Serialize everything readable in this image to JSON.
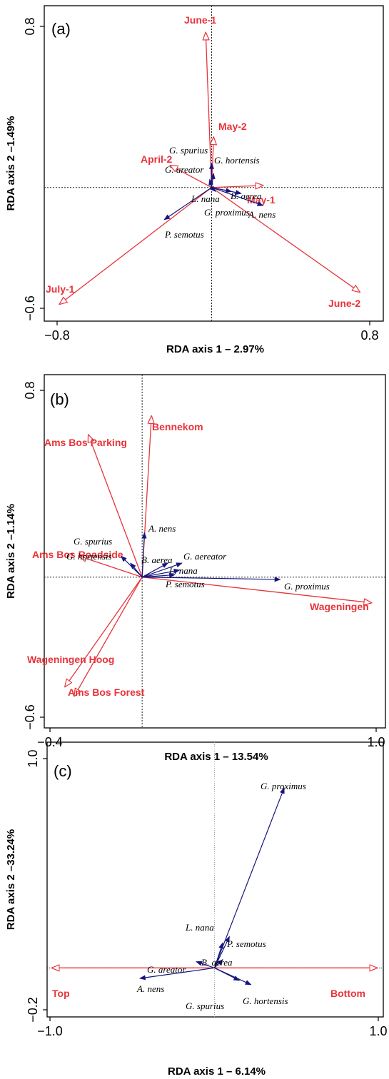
{
  "colors": {
    "environment": "#e8333a",
    "species": "#16167e",
    "frame": "#000000",
    "zero_line": "#000000"
  },
  "chart_data": [
    {
      "type": "scatter",
      "subtype": "rda-biplot",
      "panel_label": "(a)",
      "xlabel": "RDA axis 1 – 2.97%",
      "ylabel": "RDA axis 2 –1.49%",
      "xlim": [
        -0.8,
        0.8
      ],
      "ylim": [
        -0.6,
        0.8
      ],
      "x_ticks": [
        "−0.8",
        "0.8"
      ],
      "y_ticks": [
        "0.8",
        "−0.6"
      ],
      "grid": false,
      "zero_lines": true,
      "environment_vectors": [
        {
          "label": "June-1",
          "x": -0.03,
          "y": 0.77
        },
        {
          "label": "May-2",
          "x": 0.01,
          "y": 0.25
        },
        {
          "label": "April-2",
          "x": -0.21,
          "y": 0.11
        },
        {
          "label": "May-1",
          "x": 0.26,
          "y": 0.01
        },
        {
          "label": "June-2",
          "x": 0.75,
          "y": -0.52
        },
        {
          "label": "July-1",
          "x": -0.77,
          "y": -0.58
        }
      ],
      "species_vectors": [
        {
          "label": "G. spurius",
          "x": 0.0,
          "y": 0.12
        },
        {
          "label": "G. hortensis",
          "x": 0.01,
          "y": 0.07
        },
        {
          "label": "G. areator",
          "x": -0.01,
          "y": 0.04
        },
        {
          "label": "B. aerea",
          "x": 0.15,
          "y": -0.03
        },
        {
          "label": "L. nana",
          "x": 0.02,
          "y": -0.02
        },
        {
          "label": "G. proximus",
          "x": 0.1,
          "y": -0.02
        },
        {
          "label": "A. nens",
          "x": 0.26,
          "y": -0.09
        },
        {
          "label": "P. semotus",
          "x": -0.24,
          "y": -0.16
        }
      ]
    },
    {
      "type": "scatter",
      "subtype": "rda-biplot",
      "panel_label": "(b)",
      "xlabel": "RDA axis 1 – 13.54%",
      "ylabel": "RDA axis 2 –1.14%",
      "xlim": [
        -0.4,
        1.0
      ],
      "ylim": [
        -0.6,
        0.8
      ],
      "x_ticks": [
        "−0.4",
        "1.0"
      ],
      "y_ticks": [
        "0.8",
        "−0.6"
      ],
      "grid": false,
      "zero_lines": true,
      "environment_vectors": [
        {
          "label": "Bennekom",
          "x": 0.04,
          "y": 0.69
        },
        {
          "label": "Ams Bos Parking",
          "x": -0.23,
          "y": 0.61
        },
        {
          "label": "Ams Bos Roadside",
          "x": -0.27,
          "y": 0.09
        },
        {
          "label": "Wageningen",
          "x": 0.98,
          "y": -0.11
        },
        {
          "label": "Wageningen Hoog",
          "x": -0.33,
          "y": -0.47
        },
        {
          "label": "Ams Bos Forest",
          "x": -0.29,
          "y": -0.51
        }
      ],
      "species_vectors": [
        {
          "label": "A. nens",
          "x": 0.01,
          "y": 0.19
        },
        {
          "label": "G. spurius",
          "x": -0.09,
          "y": 0.09
        },
        {
          "label": "G. hortensis",
          "x": -0.05,
          "y": 0.06
        },
        {
          "label": "B. aerea",
          "x": 0.11,
          "y": 0.06
        },
        {
          "label": "G. aereator",
          "x": 0.17,
          "y": 0.06
        },
        {
          "label": "L. nana",
          "x": 0.16,
          "y": 0.03
        },
        {
          "label": "P. semotus",
          "x": 0.14,
          "y": 0.01
        },
        {
          "label": "G. proximus",
          "x": 0.59,
          "y": -0.01
        }
      ]
    },
    {
      "type": "scatter",
      "subtype": "rda-biplot",
      "panel_label": "(c)",
      "xlabel": "RDA axis 1 – 6.14%",
      "ylabel": "RDA axis 2 –33.24%",
      "xlim": [
        -1.0,
        1.0
      ],
      "ylim": [
        -0.2,
        1.0
      ],
      "x_ticks": [
        "−1.0",
        "1.0"
      ],
      "y_ticks": [
        "1.0",
        "−0.2"
      ],
      "grid": false,
      "zero_lines": true,
      "environment_vectors": [
        {
          "label": "Top",
          "x": -0.98,
          "y": 0.0
        },
        {
          "label": "Bottom",
          "x": 0.98,
          "y": 0.0
        }
      ],
      "species_vectors": [
        {
          "label": "G. proximus",
          "x": 0.42,
          "y": 0.86
        },
        {
          "label": "P. semotus",
          "x": 0.09,
          "y": 0.15
        },
        {
          "label": "L. nana",
          "x": 0.05,
          "y": 0.12
        },
        {
          "label": "B. aerea",
          "x": 0.05,
          "y": 0.04
        },
        {
          "label": "G. areator",
          "x": -0.11,
          "y": 0.03
        },
        {
          "label": "A. nens",
          "x": -0.45,
          "y": -0.05
        },
        {
          "label": "G. spurius",
          "x": 0.15,
          "y": -0.06
        },
        {
          "label": "G. hortensis",
          "x": 0.22,
          "y": -0.08
        }
      ]
    }
  ]
}
